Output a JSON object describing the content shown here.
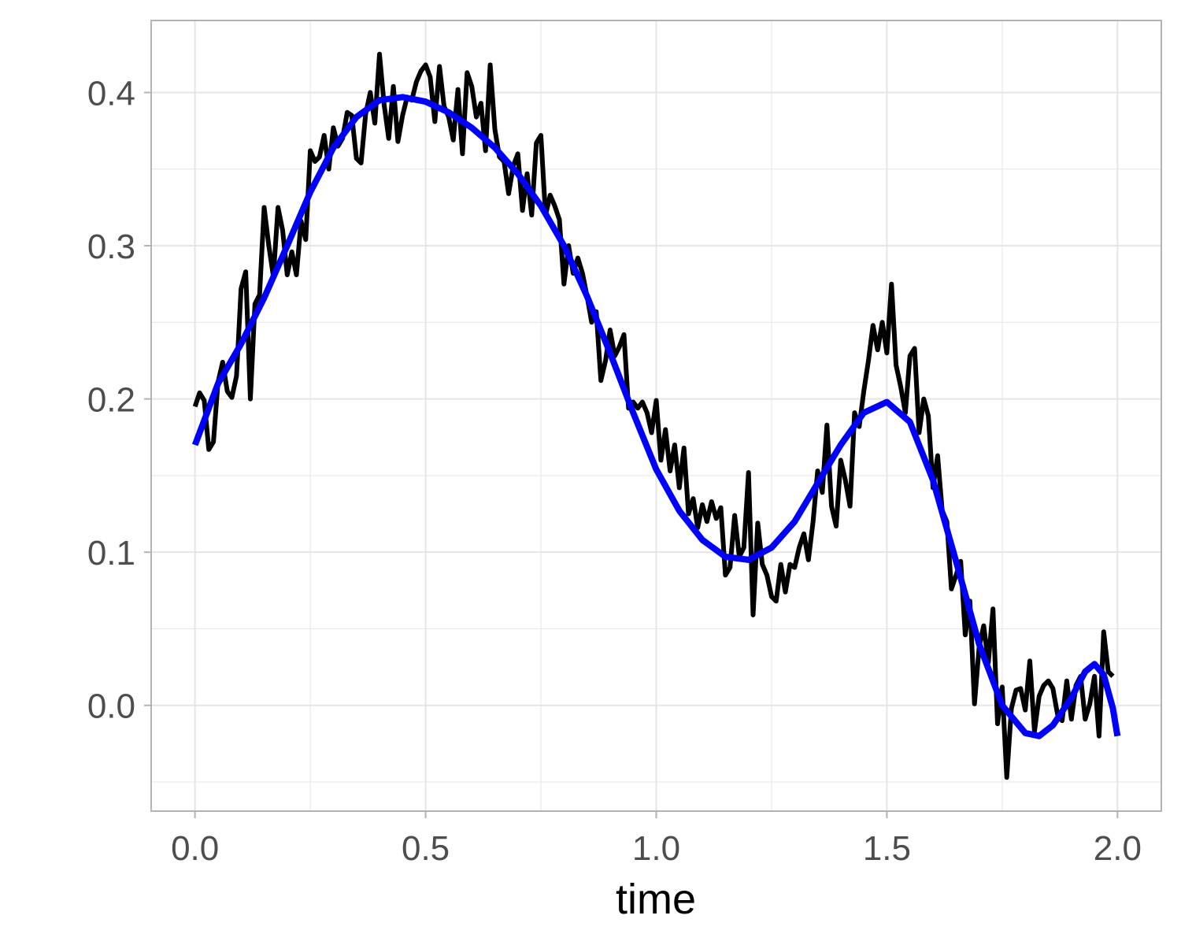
{
  "chart_data": {
    "type": "line",
    "title": "",
    "xlabel": "time",
    "ylabel": "",
    "xlim": [
      -0.095,
      2.095
    ],
    "ylim": [
      -0.069,
      0.447
    ],
    "x_ticks": [
      0.0,
      0.5,
      1.0,
      1.5,
      2.0
    ],
    "x_tick_labels": [
      "0.0",
      "0.5",
      "1.0",
      "1.5",
      "2.0"
    ],
    "y_ticks": [
      0.0,
      0.1,
      0.2,
      0.3,
      0.4
    ],
    "y_tick_labels": [
      "0.0",
      "0.1",
      "0.2",
      "0.3",
      "0.4"
    ],
    "grid": true,
    "legend": "none",
    "colors": {
      "noisy": "#000000",
      "smooth": "#0000ff",
      "grid": "#e5e5e5",
      "border": "#b3b3b3"
    },
    "series": [
      {
        "color": "#000000",
        "points": [
          [
            0.0,
            0.195
          ],
          [
            0.01,
            0.204
          ],
          [
            0.02,
            0.199
          ],
          [
            0.03,
            0.167
          ],
          [
            0.04,
            0.172
          ],
          [
            0.05,
            0.211
          ],
          [
            0.06,
            0.224
          ],
          [
            0.07,
            0.205
          ],
          [
            0.08,
            0.201
          ],
          [
            0.09,
            0.215
          ],
          [
            0.1,
            0.272
          ],
          [
            0.11,
            0.283
          ],
          [
            0.12,
            0.2
          ],
          [
            0.13,
            0.262
          ],
          [
            0.14,
            0.268
          ],
          [
            0.15,
            0.325
          ],
          [
            0.16,
            0.3
          ],
          [
            0.17,
            0.28
          ],
          [
            0.18,
            0.325
          ],
          [
            0.19,
            0.31
          ],
          [
            0.2,
            0.281
          ],
          [
            0.21,
            0.296
          ],
          [
            0.22,
            0.281
          ],
          [
            0.23,
            0.316
          ],
          [
            0.24,
            0.304
          ],
          [
            0.25,
            0.362
          ],
          [
            0.26,
            0.355
          ],
          [
            0.27,
            0.358
          ],
          [
            0.28,
            0.372
          ],
          [
            0.29,
            0.35
          ],
          [
            0.3,
            0.377
          ],
          [
            0.31,
            0.365
          ],
          [
            0.32,
            0.37
          ],
          [
            0.33,
            0.387
          ],
          [
            0.34,
            0.385
          ],
          [
            0.35,
            0.357
          ],
          [
            0.36,
            0.354
          ],
          [
            0.37,
            0.386
          ],
          [
            0.38,
            0.4
          ],
          [
            0.39,
            0.38
          ],
          [
            0.4,
            0.425
          ],
          [
            0.41,
            0.392
          ],
          [
            0.42,
            0.37
          ],
          [
            0.43,
            0.404
          ],
          [
            0.44,
            0.368
          ],
          [
            0.45,
            0.385
          ],
          [
            0.46,
            0.397
          ],
          [
            0.47,
            0.395
          ],
          [
            0.48,
            0.407
          ],
          [
            0.49,
            0.414
          ],
          [
            0.5,
            0.418
          ],
          [
            0.51,
            0.41
          ],
          [
            0.52,
            0.381
          ],
          [
            0.53,
            0.417
          ],
          [
            0.54,
            0.391
          ],
          [
            0.55,
            0.384
          ],
          [
            0.56,
            0.369
          ],
          [
            0.57,
            0.402
          ],
          [
            0.58,
            0.36
          ],
          [
            0.59,
            0.413
          ],
          [
            0.6,
            0.404
          ],
          [
            0.61,
            0.384
          ],
          [
            0.62,
            0.393
          ],
          [
            0.63,
            0.362
          ],
          [
            0.64,
            0.418
          ],
          [
            0.65,
            0.376
          ],
          [
            0.66,
            0.358
          ],
          [
            0.67,
            0.355
          ],
          [
            0.68,
            0.334
          ],
          [
            0.69,
            0.352
          ],
          [
            0.7,
            0.36
          ],
          [
            0.71,
            0.323
          ],
          [
            0.72,
            0.347
          ],
          [
            0.73,
            0.32
          ],
          [
            0.74,
            0.367
          ],
          [
            0.75,
            0.372
          ],
          [
            0.76,
            0.32
          ],
          [
            0.77,
            0.333
          ],
          [
            0.78,
            0.326
          ],
          [
            0.79,
            0.317
          ],
          [
            0.8,
            0.275
          ],
          [
            0.81,
            0.3
          ],
          [
            0.82,
            0.282
          ],
          [
            0.83,
            0.292
          ],
          [
            0.84,
            0.282
          ],
          [
            0.85,
            0.267
          ],
          [
            0.86,
            0.25
          ],
          [
            0.87,
            0.257
          ],
          [
            0.88,
            0.212
          ],
          [
            0.89,
            0.225
          ],
          [
            0.9,
            0.245
          ],
          [
            0.91,
            0.228
          ],
          [
            0.92,
            0.234
          ],
          [
            0.93,
            0.242
          ],
          [
            0.94,
            0.194
          ],
          [
            0.95,
            0.198
          ],
          [
            0.96,
            0.194
          ],
          [
            0.97,
            0.198
          ],
          [
            0.98,
            0.191
          ],
          [
            0.99,
            0.178
          ],
          [
            1.0,
            0.199
          ],
          [
            1.01,
            0.16
          ],
          [
            1.02,
            0.18
          ],
          [
            1.03,
            0.153
          ],
          [
            1.04,
            0.17
          ],
          [
            1.05,
            0.142
          ],
          [
            1.06,
            0.168
          ],
          [
            1.07,
            0.125
          ],
          [
            1.08,
            0.135
          ],
          [
            1.09,
            0.116
          ],
          [
            1.1,
            0.131
          ],
          [
            1.11,
            0.12
          ],
          [
            1.12,
            0.133
          ],
          [
            1.13,
            0.122
          ],
          [
            1.14,
            0.129
          ],
          [
            1.15,
            0.085
          ],
          [
            1.16,
            0.09
          ],
          [
            1.17,
            0.124
          ],
          [
            1.18,
            0.097
          ],
          [
            1.19,
            0.103
          ],
          [
            1.2,
            0.152
          ],
          [
            1.21,
            0.059
          ],
          [
            1.22,
            0.119
          ],
          [
            1.23,
            0.092
          ],
          [
            1.24,
            0.085
          ],
          [
            1.25,
            0.071
          ],
          [
            1.26,
            0.068
          ],
          [
            1.27,
            0.092
          ],
          [
            1.28,
            0.074
          ],
          [
            1.29,
            0.092
          ],
          [
            1.3,
            0.09
          ],
          [
            1.31,
            0.103
          ],
          [
            1.32,
            0.112
          ],
          [
            1.33,
            0.095
          ],
          [
            1.34,
            0.12
          ],
          [
            1.35,
            0.153
          ],
          [
            1.36,
            0.139
          ],
          [
            1.37,
            0.183
          ],
          [
            1.38,
            0.13
          ],
          [
            1.39,
            0.117
          ],
          [
            1.4,
            0.16
          ],
          [
            1.41,
            0.147
          ],
          [
            1.42,
            0.13
          ],
          [
            1.43,
            0.191
          ],
          [
            1.44,
            0.182
          ],
          [
            1.45,
            0.205
          ],
          [
            1.46,
            0.225
          ],
          [
            1.47,
            0.248
          ],
          [
            1.48,
            0.232
          ],
          [
            1.49,
            0.25
          ],
          [
            1.5,
            0.23
          ],
          [
            1.51,
            0.275
          ],
          [
            1.52,
            0.222
          ],
          [
            1.53,
            0.208
          ],
          [
            1.54,
            0.191
          ],
          [
            1.55,
            0.228
          ],
          [
            1.56,
            0.233
          ],
          [
            1.57,
            0.178
          ],
          [
            1.58,
            0.2
          ],
          [
            1.59,
            0.189
          ],
          [
            1.6,
            0.142
          ],
          [
            1.61,
            0.163
          ],
          [
            1.62,
            0.127
          ],
          [
            1.63,
            0.12
          ],
          [
            1.64,
            0.076
          ],
          [
            1.65,
            0.085
          ],
          [
            1.66,
            0.094
          ],
          [
            1.67,
            0.046
          ],
          [
            1.68,
            0.068
          ],
          [
            1.69,
            0.001
          ],
          [
            1.7,
            0.038
          ],
          [
            1.71,
            0.052
          ],
          [
            1.72,
            0.028
          ],
          [
            1.73,
            0.063
          ],
          [
            1.74,
            -0.012
          ],
          [
            1.75,
            0.012
          ],
          [
            1.76,
            -0.047
          ],
          [
            1.77,
            -0.002
          ],
          [
            1.78,
            0.01
          ],
          [
            1.79,
            0.011
          ],
          [
            1.8,
            -0.003
          ],
          [
            1.81,
            0.029
          ],
          [
            1.82,
            -0.017
          ],
          [
            1.83,
            0.006
          ],
          [
            1.84,
            0.013
          ],
          [
            1.85,
            0.016
          ],
          [
            1.86,
            0.011
          ],
          [
            1.87,
            -0.006
          ],
          [
            1.88,
            -0.01
          ],
          [
            1.89,
            0.016
          ],
          [
            1.9,
            -0.009
          ],
          [
            1.91,
            0.013
          ],
          [
            1.92,
            0.019
          ],
          [
            1.93,
            -0.009
          ],
          [
            1.94,
            0.001
          ],
          [
            1.95,
            0.019
          ],
          [
            1.96,
            -0.02
          ],
          [
            1.97,
            0.048
          ],
          [
            1.98,
            0.022
          ],
          [
            1.99,
            0.019
          ]
        ]
      },
      {
        "color": "#0000ff",
        "points": [
          [
            0.0,
            0.17
          ],
          [
            0.05,
            0.21
          ],
          [
            0.1,
            0.236
          ],
          [
            0.15,
            0.266
          ],
          [
            0.2,
            0.3
          ],
          [
            0.25,
            0.335
          ],
          [
            0.3,
            0.364
          ],
          [
            0.35,
            0.384
          ],
          [
            0.4,
            0.395
          ],
          [
            0.45,
            0.397
          ],
          [
            0.5,
            0.394
          ],
          [
            0.55,
            0.387
          ],
          [
            0.6,
            0.377
          ],
          [
            0.65,
            0.364
          ],
          [
            0.7,
            0.347
          ],
          [
            0.75,
            0.326
          ],
          [
            0.8,
            0.3
          ],
          [
            0.85,
            0.267
          ],
          [
            0.9,
            0.23
          ],
          [
            0.95,
            0.191
          ],
          [
            1.0,
            0.154
          ],
          [
            1.05,
            0.127
          ],
          [
            1.1,
            0.108
          ],
          [
            1.15,
            0.097
          ],
          [
            1.2,
            0.095
          ],
          [
            1.25,
            0.103
          ],
          [
            1.3,
            0.12
          ],
          [
            1.35,
            0.145
          ],
          [
            1.4,
            0.17
          ],
          [
            1.45,
            0.191
          ],
          [
            1.5,
            0.198
          ],
          [
            1.55,
            0.185
          ],
          [
            1.6,
            0.147
          ],
          [
            1.65,
            0.094
          ],
          [
            1.7,
            0.04
          ],
          [
            1.75,
            0.0
          ],
          [
            1.8,
            -0.018
          ],
          [
            1.83,
            -0.02
          ],
          [
            1.86,
            -0.013
          ],
          [
            1.9,
            0.005
          ],
          [
            1.93,
            0.022
          ],
          [
            1.95,
            0.027
          ],
          [
            1.97,
            0.02
          ],
          [
            1.99,
            -0.002
          ],
          [
            2.0,
            -0.02
          ]
        ]
      }
    ]
  }
}
